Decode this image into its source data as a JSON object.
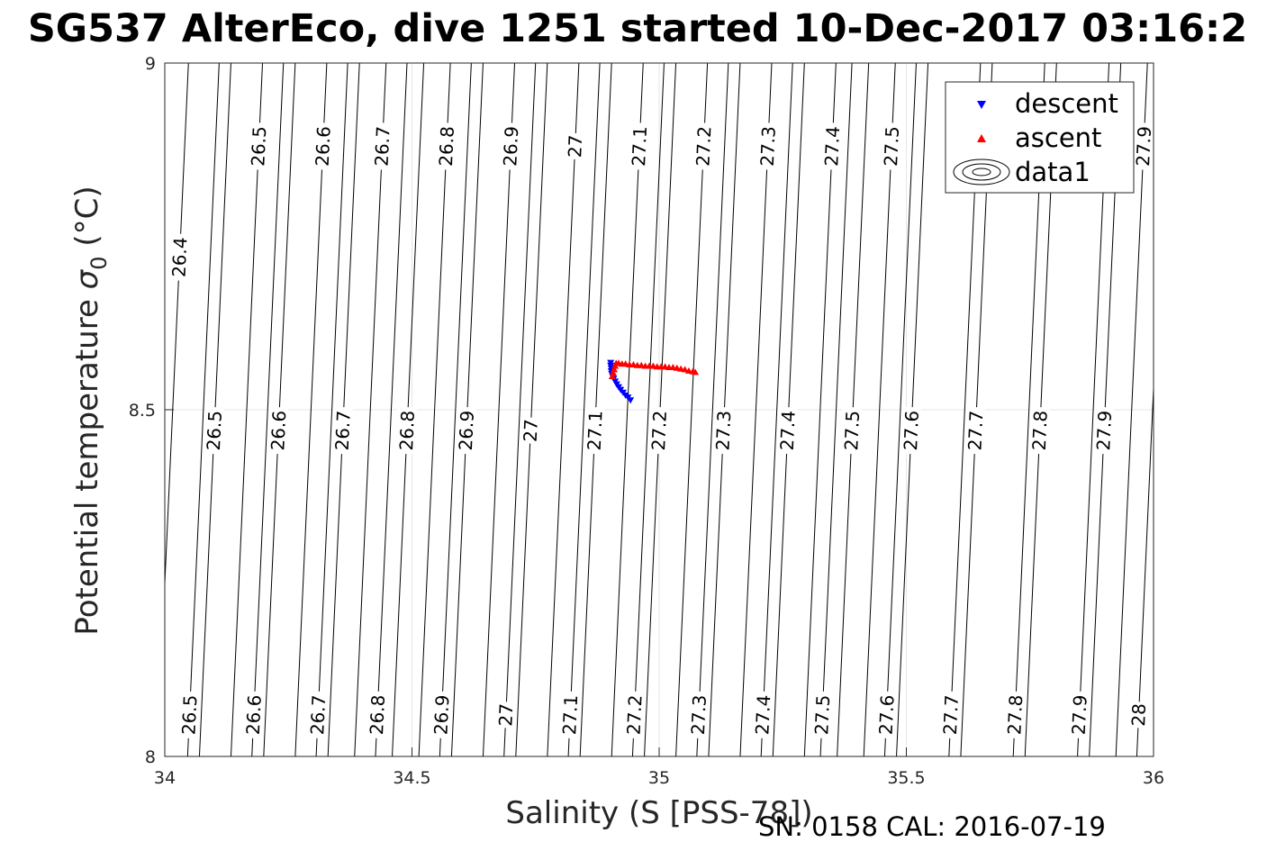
{
  "chart_data": {
    "type": "scatter",
    "title": "SG537 AlterEco, dive 1251 started 10-Dec-2017 03:16:2",
    "xlabel": "Salinity (S [PSS-78])",
    "ylabel_main": "Potential temperature ",
    "ylabel_sigma": "σ",
    "ylabel_sub": "0",
    "ylabel_unit": " (°C)",
    "xlim": [
      34,
      36
    ],
    "ylim": [
      8,
      9
    ],
    "xticks": [
      "34",
      "34.5",
      "35",
      "35.5",
      "36"
    ],
    "yticks": [
      "8",
      "8.5",
      "9"
    ],
    "grid": true,
    "legend_position": "top-right",
    "legend": [
      "descent",
      "ascent",
      "data1"
    ],
    "contour_labels": [
      {
        "s": 34.05,
        "t": 8.06,
        "text": "26.5"
      },
      {
        "s": 34.18,
        "t": 8.06,
        "text": "26.6"
      },
      {
        "s": 34.31,
        "t": 8.06,
        "text": "26.7"
      },
      {
        "s": 34.43,
        "t": 8.06,
        "text": "26.8"
      },
      {
        "s": 34.56,
        "t": 8.06,
        "text": "26.9"
      },
      {
        "s": 34.69,
        "t": 8.06,
        "text": "27"
      },
      {
        "s": 34.82,
        "t": 8.06,
        "text": "27.1"
      },
      {
        "s": 34.95,
        "t": 8.06,
        "text": "27.2"
      },
      {
        "s": 35.08,
        "t": 8.06,
        "text": "27.3"
      },
      {
        "s": 35.21,
        "t": 8.06,
        "text": "27.4"
      },
      {
        "s": 35.33,
        "t": 8.06,
        "text": "27.5"
      },
      {
        "s": 35.46,
        "t": 8.06,
        "text": "27.6"
      },
      {
        "s": 35.59,
        "t": 8.06,
        "text": "27.7"
      },
      {
        "s": 35.72,
        "t": 8.06,
        "text": "27.8"
      },
      {
        "s": 35.85,
        "t": 8.06,
        "text": "27.9"
      },
      {
        "s": 35.97,
        "t": 8.06,
        "text": "28"
      },
      {
        "s": 34.1,
        "t": 8.47,
        "text": "26.5"
      },
      {
        "s": 34.23,
        "t": 8.47,
        "text": "26.6"
      },
      {
        "s": 34.36,
        "t": 8.47,
        "text": "26.7"
      },
      {
        "s": 34.49,
        "t": 8.47,
        "text": "26.8"
      },
      {
        "s": 34.61,
        "t": 8.47,
        "text": "26.9"
      },
      {
        "s": 34.74,
        "t": 8.47,
        "text": "27"
      },
      {
        "s": 34.87,
        "t": 8.47,
        "text": "27.1"
      },
      {
        "s": 35.0,
        "t": 8.47,
        "text": "27.2"
      },
      {
        "s": 35.13,
        "t": 8.47,
        "text": "27.3"
      },
      {
        "s": 35.26,
        "t": 8.47,
        "text": "27.4"
      },
      {
        "s": 35.39,
        "t": 8.47,
        "text": "27.5"
      },
      {
        "s": 35.51,
        "t": 8.47,
        "text": "27.6"
      },
      {
        "s": 35.64,
        "t": 8.47,
        "text": "27.7"
      },
      {
        "s": 35.77,
        "t": 8.47,
        "text": "27.8"
      },
      {
        "s": 35.9,
        "t": 8.47,
        "text": "27.9"
      },
      {
        "s": 34.03,
        "t": 8.72,
        "text": "26.4"
      },
      {
        "s": 34.19,
        "t": 8.88,
        "text": "26.5"
      },
      {
        "s": 34.32,
        "t": 8.88,
        "text": "26.6"
      },
      {
        "s": 34.44,
        "t": 8.88,
        "text": "26.7"
      },
      {
        "s": 34.57,
        "t": 8.88,
        "text": "26.8"
      },
      {
        "s": 34.7,
        "t": 8.88,
        "text": "26.9"
      },
      {
        "s": 34.83,
        "t": 8.88,
        "text": "27"
      },
      {
        "s": 34.96,
        "t": 8.88,
        "text": "27.1"
      },
      {
        "s": 35.09,
        "t": 8.88,
        "text": "27.2"
      },
      {
        "s": 35.22,
        "t": 8.88,
        "text": "27.3"
      },
      {
        "s": 35.35,
        "t": 8.88,
        "text": "27.4"
      },
      {
        "s": 35.47,
        "t": 8.88,
        "text": "27.5"
      },
      {
        "s": 35.98,
        "t": 8.88,
        "text": "27.9"
      }
    ],
    "series": [
      {
        "name": "descent",
        "marker": "triangle-down",
        "color": "#0000ff",
        "points": [
          [
            34.902,
            8.568
          ],
          [
            34.902,
            8.564
          ],
          [
            34.903,
            8.56
          ],
          [
            34.903,
            8.556
          ],
          [
            34.904,
            8.552
          ],
          [
            34.906,
            8.548
          ],
          [
            34.908,
            8.545
          ],
          [
            34.911,
            8.541
          ],
          [
            34.914,
            8.537
          ],
          [
            34.918,
            8.533
          ],
          [
            34.922,
            8.529
          ],
          [
            34.927,
            8.525
          ],
          [
            34.932,
            8.521
          ],
          [
            34.937,
            8.518
          ],
          [
            34.942,
            8.514
          ]
        ]
      },
      {
        "name": "ascent",
        "marker": "triangle-up",
        "color": "#ff0000",
        "points": [
          [
            34.905,
            8.548
          ],
          [
            34.907,
            8.553
          ],
          [
            34.909,
            8.558
          ],
          [
            34.911,
            8.563
          ],
          [
            34.913,
            8.567
          ],
          [
            34.918,
            8.567
          ],
          [
            34.925,
            8.566
          ],
          [
            34.932,
            8.566
          ],
          [
            34.94,
            8.565
          ],
          [
            34.948,
            8.565
          ],
          [
            34.956,
            8.564
          ],
          [
            34.964,
            8.564
          ],
          [
            34.972,
            8.563
          ],
          [
            34.98,
            8.563
          ],
          [
            34.988,
            8.563
          ],
          [
            34.996,
            8.562
          ],
          [
            35.004,
            8.562
          ],
          [
            35.012,
            8.562
          ],
          [
            35.02,
            8.561
          ],
          [
            35.028,
            8.561
          ],
          [
            35.036,
            8.56
          ],
          [
            35.044,
            8.559
          ],
          [
            35.052,
            8.558
          ],
          [
            35.06,
            8.556
          ],
          [
            35.068,
            8.555
          ],
          [
            35.073,
            8.554
          ]
        ]
      }
    ]
  },
  "footer_text": "SN: 0158  CAL: 2016-07-19"
}
